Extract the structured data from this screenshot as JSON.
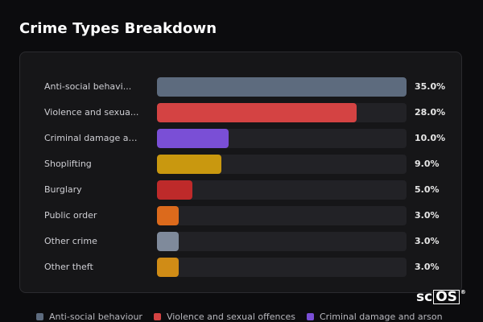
{
  "page": {
    "title": "Crime Types Breakdown"
  },
  "chart_data": {
    "type": "bar",
    "orientation": "horizontal",
    "categories": [
      "Anti-social behavi...",
      "Violence and sexua...",
      "Criminal damage an...",
      "Shoplifting",
      "Burglary",
      "Public order",
      "Other crime",
      "Other theft"
    ],
    "values": [
      35.0,
      28.0,
      10.0,
      9.0,
      5.0,
      3.0,
      3.0,
      3.0
    ],
    "value_labels": [
      "35.0%",
      "28.0%",
      "10.0%",
      "9.0%",
      "5.0%",
      "3.0%",
      "3.0%",
      "3.0%"
    ],
    "colors": [
      "#5d6b7e",
      "#d44343",
      "#7a4fd6",
      "#c9980f",
      "#be2a2a",
      "#dc6a1c",
      "#7f8a9b",
      "#d08c16"
    ],
    "xlim": [
      0,
      35
    ],
    "grid": false,
    "legend_position": "bottom"
  },
  "legend": [
    {
      "label": "Anti-social behaviour",
      "color": "#5d6b7e"
    },
    {
      "label": "Violence and sexual offences",
      "color": "#d44343"
    },
    {
      "label": "Criminal damage and arson",
      "color": "#7a4fd6"
    }
  ],
  "logo": {
    "text_prefix": "sc",
    "text_boxed": "OS",
    "mark": "®"
  }
}
